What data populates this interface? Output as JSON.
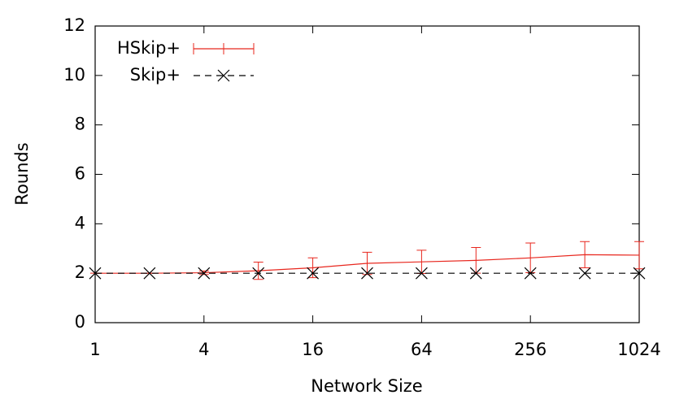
{
  "chart_data": {
    "type": "line",
    "xlabel": "Network Size",
    "ylabel": "Rounds",
    "x": [
      1,
      2,
      4,
      8,
      16,
      32,
      64,
      128,
      256,
      512,
      1024
    ],
    "xlim": [
      1,
      1024
    ],
    "xticks": [
      1,
      4,
      16,
      64,
      256,
      1024
    ],
    "xscale": "log2",
    "ylim": [
      0,
      12
    ],
    "yticks": [
      0,
      2,
      4,
      6,
      8,
      10,
      12
    ],
    "legend": "top-left",
    "series": [
      {
        "name": "HSkip+",
        "color": "#e8271e",
        "style": "solid-errorbars",
        "values": [
          2.0,
          2.0,
          2.02,
          2.1,
          2.22,
          2.4,
          2.46,
          2.52,
          2.62,
          2.75,
          2.73
        ],
        "errors": [
          0,
          0,
          0.07,
          0.35,
          0.4,
          0.45,
          0.47,
          0.52,
          0.6,
          0.53,
          0.55
        ]
      },
      {
        "name": "Skip+",
        "color": "#000000",
        "style": "dashed-x",
        "values": [
          2,
          2,
          2,
          2,
          2,
          2,
          2,
          2,
          2,
          2,
          2
        ]
      }
    ]
  }
}
